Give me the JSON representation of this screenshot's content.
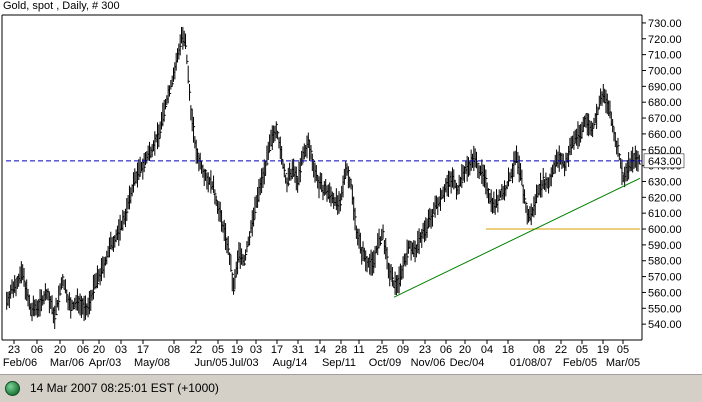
{
  "title": "Gold, spot , Daily, # 300",
  "status": {
    "text": "14 Mar 2007 08:25:01 EST (+1000)"
  },
  "chart_data": {
    "type": "ohlc",
    "title": "Gold, spot , Daily, # 300",
    "ylim": [
      530,
      735
    ],
    "y_ticks": [
      540,
      550,
      560,
      570,
      580,
      590,
      600,
      610,
      620,
      630,
      640,
      650,
      660,
      670,
      680,
      690,
      700,
      710,
      720,
      730
    ],
    "y_tick_labels": [
      "540.00",
      "550.00",
      "560.00",
      "570.00",
      "580.00",
      "590.00",
      "600.00",
      "610.00",
      "620.00",
      "630.00",
      "640.00",
      "650.00",
      "660.00",
      "670.00",
      "680.00",
      "690.00",
      "700.00",
      "710.00",
      "720.00",
      "730.00"
    ],
    "current_level": {
      "value": 643.0,
      "label": "643.00",
      "color": "#0000cc"
    },
    "support_line": {
      "value": 600.0,
      "color": "#d4a000"
    },
    "trendline": {
      "color": "#008000",
      "from_price": 557,
      "to_price": 632
    },
    "x_day_labels": [
      "23",
      "06",
      "20",
      "06",
      "20",
      "03",
      "17",
      "08",
      "22",
      "05",
      "19",
      "03",
      "17",
      "31",
      "14",
      "28",
      "11",
      "25",
      "09",
      "23",
      "06",
      "20",
      "04",
      "18",
      "08",
      "22",
      "05",
      "19",
      "05"
    ],
    "x_month_labels": [
      "Feb/06",
      "Mar/06",
      "Apr/03",
      "May/08",
      "Jun/05",
      "Jul/03",
      "Aug/14",
      "Sep/11",
      "Oct/09",
      "Nov/06",
      "Dec/04",
      "01/08/07",
      "Feb/05",
      "Mar/05"
    ],
    "series_anchors": [
      [
        0,
        555
      ],
      [
        6,
        565
      ],
      [
        12,
        572
      ],
      [
        18,
        548
      ],
      [
        24,
        552
      ],
      [
        30,
        560
      ],
      [
        36,
        545
      ],
      [
        42,
        568
      ],
      [
        48,
        550
      ],
      [
        54,
        555
      ],
      [
        60,
        548
      ],
      [
        66,
        565
      ],
      [
        72,
        575
      ],
      [
        78,
        590
      ],
      [
        84,
        598
      ],
      [
        90,
        612
      ],
      [
        96,
        632
      ],
      [
        102,
        640
      ],
      [
        108,
        650
      ],
      [
        114,
        660
      ],
      [
        120,
        682
      ],
      [
        126,
        700
      ],
      [
        131,
        722
      ],
      [
        134,
        716
      ],
      [
        138,
        676
      ],
      [
        142,
        648
      ],
      [
        146,
        640
      ],
      [
        150,
        632
      ],
      [
        154,
        628
      ],
      [
        158,
        615
      ],
      [
        162,
        602
      ],
      [
        166,
        588
      ],
      [
        170,
        562
      ],
      [
        174,
        585
      ],
      [
        178,
        580
      ],
      [
        182,
        596
      ],
      [
        186,
        612
      ],
      [
        190,
        628
      ],
      [
        194,
        640
      ],
      [
        198,
        655
      ],
      [
        202,
        665
      ],
      [
        206,
        645
      ],
      [
        210,
        628
      ],
      [
        214,
        638
      ],
      [
        218,
        630
      ],
      [
        222,
        646
      ],
      [
        226,
        654
      ],
      [
        230,
        640
      ],
      [
        234,
        628
      ],
      [
        238,
        625
      ],
      [
        242,
        622
      ],
      [
        246,
        618
      ],
      [
        250,
        614
      ],
      [
        254,
        640
      ],
      [
        258,
        628
      ],
      [
        262,
        600
      ],
      [
        266,
        586
      ],
      [
        270,
        580
      ],
      [
        274,
        578
      ],
      [
        278,
        590
      ],
      [
        282,
        596
      ],
      [
        286,
        575
      ],
      [
        290,
        565
      ],
      [
        294,
        568
      ],
      [
        298,
        580
      ],
      [
        302,
        590
      ],
      [
        306,
        585
      ],
      [
        310,
        595
      ],
      [
        314,
        600
      ],
      [
        318,
        608
      ],
      [
        322,
        615
      ],
      [
        326,
        622
      ],
      [
        330,
        628
      ],
      [
        334,
        632
      ],
      [
        338,
        625
      ],
      [
        342,
        635
      ],
      [
        346,
        640
      ],
      [
        350,
        645
      ],
      [
        354,
        638
      ],
      [
        358,
        632
      ],
      [
        362,
        620
      ],
      [
        366,
        615
      ],
      [
        370,
        622
      ],
      [
        374,
        625
      ],
      [
        378,
        635
      ],
      [
        382,
        645
      ],
      [
        386,
        630
      ],
      [
        390,
        608
      ],
      [
        394,
        610
      ],
      [
        398,
        625
      ],
      [
        402,
        630
      ],
      [
        406,
        628
      ],
      [
        410,
        640
      ],
      [
        414,
        645
      ],
      [
        418,
        640
      ],
      [
        422,
        650
      ],
      [
        426,
        658
      ],
      [
        430,
        660
      ],
      [
        434,
        670
      ],
      [
        438,
        662
      ],
      [
        442,
        672
      ],
      [
        446,
        684
      ],
      [
        450,
        680
      ],
      [
        454,
        664
      ],
      [
        458,
        650
      ],
      [
        462,
        632
      ],
      [
        466,
        640
      ],
      [
        470,
        645
      ],
      [
        474,
        643
      ]
    ]
  }
}
